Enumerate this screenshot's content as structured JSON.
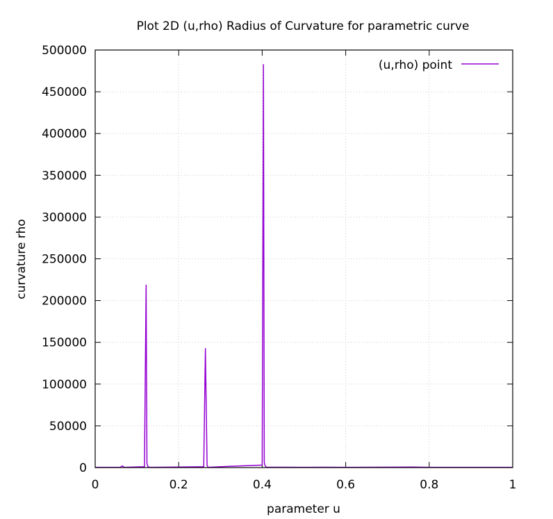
{
  "chart_data": {
    "type": "line",
    "title": "Plot 2D (u,rho) Radius of Curvature for parametric curve",
    "xlabel": "parameter u",
    "ylabel": "curvature rho",
    "xlim": [
      0,
      1
    ],
    "ylim": [
      0,
      500000
    ],
    "xticks": [
      0,
      0.2,
      0.4,
      0.6,
      0.8,
      1
    ],
    "xtick_labels": [
      "0",
      "0.2",
      "0.4",
      "0.6",
      "0.8",
      "1"
    ],
    "yticks": [
      0,
      50000,
      100000,
      150000,
      200000,
      250000,
      300000,
      350000,
      400000,
      450000,
      500000
    ],
    "ytick_labels": [
      "0",
      "50000",
      "100000",
      "150000",
      "200000",
      "250000",
      "300000",
      "350000",
      "400000",
      "450000",
      "500000"
    ],
    "grid": true,
    "legend_position": "top-right",
    "series": [
      {
        "name": "(u,rho) point",
        "color": "#9400d3",
        "x": [
          0,
          0.06,
          0.065,
          0.07,
          0.118,
          0.122,
          0.124,
          0.126,
          0.13,
          0.26,
          0.264,
          0.268,
          0.27,
          0.32,
          0.4,
          0.403,
          0.405,
          0.407,
          0.41,
          0.5,
          0.55,
          0.6,
          0.76,
          0.8,
          1
        ],
        "y": [
          300,
          300,
          2000,
          300,
          1000,
          219000,
          5000,
          1500,
          300,
          1000,
          143000,
          3000,
          300,
          1500,
          3000,
          483000,
          6000,
          2000,
          500,
          300,
          400,
          300,
          600,
          300,
          300
        ]
      }
    ]
  }
}
